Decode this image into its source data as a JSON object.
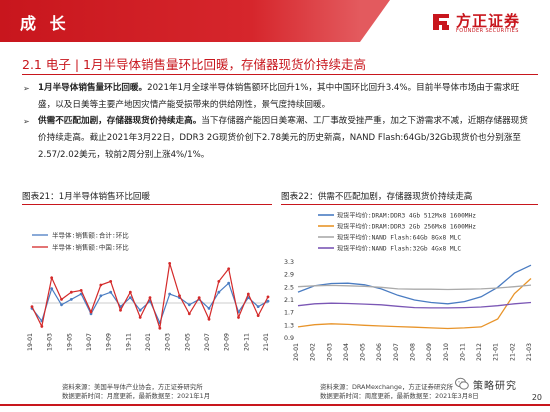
{
  "header": {
    "banner_title": "成 长",
    "logo_text": "方正证券",
    "logo_sub": "FOUNDER SECURITIES"
  },
  "section": {
    "title": "2.1 电子 | 1月半导体销售量环比回暖，存储器现货价持续走高"
  },
  "bullets": [
    {
      "lead": "1月半导体销售量环比回暖。",
      "text": "2021年1月全球半导体销售额环比回升1%，其中中国环比回升3.4%。目前半导体市场由于需求旺盛，以及日美等主要产地因灾情产能受损带来的供给刚性，景气度持续回暖。"
    },
    {
      "lead": "供需不匹配加剧，存储器现货价持续走高。",
      "text": "当下存储器产能因日美寒潮、工厂事故受挫严重，加之下游需求不减，近期存储器现货价持续走高。截止2021年3月22日，DDR3 2G现货价创下2.78美元的历史新高，NAND Flash:64Gb/32Gb现货价也分别涨至2.57/2.02美元，较前2周分别上涨4%/1%。"
    }
  ],
  "figures": {
    "left_title": "图表21：1月半导体销售环比回暖",
    "right_title": "图表22：供需不匹配加剧，存储器现货价持续走高",
    "left_source": "资料来源：美国半导体产业协会，方正证券研究所",
    "left_updated": "数据更新时间：月度更新，最新数据至：2021年1月",
    "right_source": "资料来源：DRAMexchange，方正证券研究所",
    "right_updated": "数据更新时间：周度更新，最新数据至：2021年3月8日"
  },
  "footer": {
    "wechat_label": "策略研究",
    "page_number": "20"
  },
  "colors": {
    "brand_red": "#c8161d",
    "series_blue": "#4a7cc2",
    "series_red": "#d42a2a",
    "series_orange": "#e8942a",
    "series_gray": "#aaaaaa",
    "series_purple": "#7b57b5"
  },
  "chart_data": [
    {
      "type": "line",
      "title": "",
      "legend": "top-left",
      "ylim": [
        -15,
        25
      ],
      "x": [
        "19-01",
        "19-02",
        "19-03",
        "19-04",
        "19-05",
        "19-06",
        "19-07",
        "19-08",
        "19-09",
        "19-10",
        "19-11",
        "19-12",
        "20-01",
        "20-02",
        "20-03",
        "20-04",
        "20-05",
        "20-06",
        "20-07",
        "20-08",
        "20-09",
        "20-10",
        "20-11",
        "20-12",
        "21-01"
      ],
      "x_labels_shown": [
        "19-01",
        "19-03",
        "19-05",
        "19-07",
        "19-09",
        "19-11",
        "20-01",
        "20-03",
        "20-05",
        "20-07",
        "20-09",
        "20-11",
        "21-01"
      ],
      "series": [
        {
          "name": "半导体:销售额:合计:环比",
          "values": [
            -3,
            -10,
            8,
            -1,
            2,
            5,
            -6,
            4,
            6,
            -2,
            3,
            -4,
            1,
            -11,
            5,
            3,
            -1,
            2,
            -3,
            6,
            11,
            -5,
            3,
            -2,
            1
          ]
        },
        {
          "name": "半导体:销售额:中国:环比",
          "values": [
            -2,
            -13,
            14,
            2,
            6,
            7,
            -5,
            10,
            12,
            -4,
            6,
            -8,
            3,
            -14,
            22,
            4,
            -6,
            3,
            -9,
            12,
            19,
            -8,
            5,
            -7,
            3.4
          ]
        }
      ]
    },
    {
      "type": "line",
      "title": "",
      "legend": "top-left",
      "ylim": [
        0.9,
        3.3
      ],
      "yticks": [
        0.9,
        1.3,
        1.7,
        2.1,
        2.5,
        2.9,
        3.3
      ],
      "x": [
        "20-01",
        "20-02",
        "20-03",
        "20-04",
        "20-05",
        "20-06",
        "20-07",
        "20-08",
        "20-09",
        "20-10",
        "20-11",
        "20-12",
        "21-01",
        "21-02",
        "21-03"
      ],
      "series": [
        {
          "name": "现货平均价:DRAM:DDR3 4Gb 512Mx8 1600MHz",
          "values": [
            2.35,
            2.55,
            2.62,
            2.63,
            2.58,
            2.45,
            2.25,
            2.1,
            2.02,
            1.98,
            2.05,
            2.2,
            2.5,
            2.95,
            3.2
          ]
        },
        {
          "name": "现货平均价:DRAM:DDR3 2Gb 256Mx8 1600MHz",
          "values": [
            1.25,
            1.32,
            1.35,
            1.33,
            1.3,
            1.28,
            1.26,
            1.24,
            1.22,
            1.2,
            1.22,
            1.25,
            1.5,
            2.3,
            2.78
          ]
        },
        {
          "name": "现货平均价:NAND Flash:64Gb 8Gx8 MLC",
          "values": [
            2.52,
            2.55,
            2.56,
            2.55,
            2.53,
            2.5,
            2.45,
            2.44,
            2.44,
            2.43,
            2.44,
            2.45,
            2.48,
            2.52,
            2.57
          ]
        },
        {
          "name": "现货平均价:NAND Flash:32Gb 4Gx8 MLC",
          "values": [
            1.92,
            1.98,
            2.0,
            1.99,
            1.97,
            1.95,
            1.9,
            1.86,
            1.85,
            1.85,
            1.86,
            1.88,
            1.92,
            1.98,
            2.02
          ]
        }
      ]
    }
  ]
}
